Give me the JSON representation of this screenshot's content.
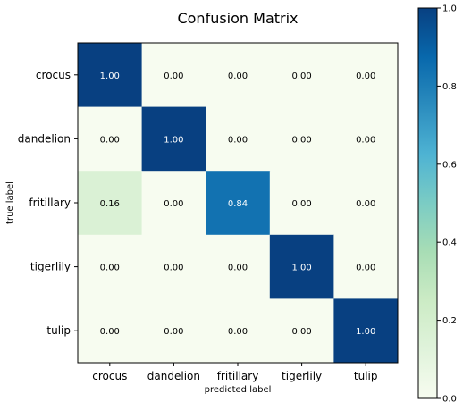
{
  "chart_data": {
    "type": "heatmap",
    "title": "Confusion Matrix",
    "xlabel": "predicted label",
    "ylabel": "true label",
    "x_categories": [
      "crocus",
      "dandelion",
      "fritillary",
      "tigerlily",
      "tulip"
    ],
    "y_categories": [
      "crocus",
      "dandelion",
      "fritillary",
      "tigerlily",
      "tulip"
    ],
    "values": [
      [
        1.0,
        0.0,
        0.0,
        0.0,
        0.0
      ],
      [
        0.0,
        1.0,
        0.0,
        0.0,
        0.0
      ],
      [
        0.16,
        0.0,
        0.84,
        0.0,
        0.0
      ],
      [
        0.0,
        0.0,
        0.0,
        1.0,
        0.0
      ],
      [
        0.0,
        0.0,
        0.0,
        0.0,
        1.0
      ]
    ],
    "value_format": "0.00",
    "colormap": "GnBu",
    "colorbar": {
      "range": [
        0.0,
        1.0
      ],
      "ticks": [
        0.0,
        0.2,
        0.4,
        0.6,
        0.8,
        1.0
      ],
      "tick_labels": [
        "0.0",
        "0.2",
        "0.4",
        "0.6",
        "0.8",
        "1.0"
      ],
      "placement": "right"
    },
    "text_color_light": "#ffffff",
    "text_color_dark": "#000000",
    "grid": false
  }
}
